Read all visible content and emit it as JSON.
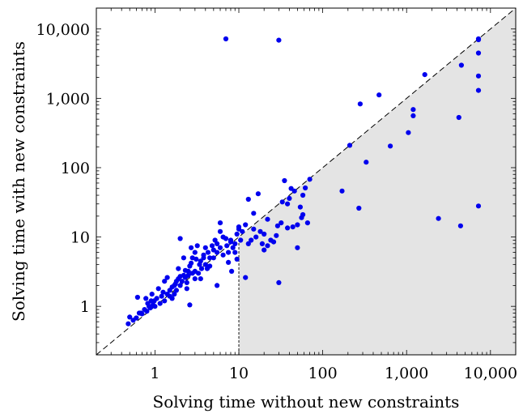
{
  "chart_data": {
    "type": "scatter",
    "xlabel": "Solving time without new constraints",
    "ylabel": "Solving time with new constraints",
    "xscale": "log",
    "yscale": "log",
    "xlim": [
      0.2,
      20000
    ],
    "ylim": [
      0.2,
      20000
    ],
    "xticks": [
      1,
      10,
      100,
      1000,
      10000
    ],
    "xtick_labels": [
      "1",
      "10",
      "100",
      "1,000",
      "10,000"
    ],
    "yticks": [
      1,
      10,
      100,
      1000,
      10000
    ],
    "ytick_labels": [
      "1",
      "10",
      "100",
      "1,000",
      "10,000"
    ],
    "diagonal": "y = x (dashed)",
    "shaded_region": "x >= 10 and y <= x",
    "grid": false,
    "marker_color": "#0000ee",
    "shade_color": "#e4e4e4",
    "points": [
      [
        7,
        7200
      ],
      [
        30,
        6900
      ],
      [
        7200,
        7200
      ],
      [
        7200,
        7000
      ],
      [
        7200,
        4500
      ],
      [
        7200,
        2100
      ],
      [
        7200,
        1300
      ],
      [
        7200,
        28
      ],
      [
        4500,
        3000
      ],
      [
        4200,
        530
      ],
      [
        4400,
        14.5
      ],
      [
        2400,
        18.5
      ],
      [
        1650,
        2200
      ],
      [
        1200,
        690
      ],
      [
        1200,
        560
      ],
      [
        1050,
        320
      ],
      [
        470,
        1120
      ],
      [
        280,
        830
      ],
      [
        210,
        210
      ],
      [
        330,
        120
      ],
      [
        640,
        205
      ],
      [
        170,
        46
      ],
      [
        270,
        26
      ],
      [
        30,
        2.2
      ],
      [
        12,
        2.6
      ],
      [
        50,
        7
      ],
      [
        70,
        68
      ],
      [
        62,
        51
      ],
      [
        58,
        40
      ],
      [
        40,
        36
      ],
      [
        42,
        50
      ],
      [
        46,
        46
      ],
      [
        35,
        65
      ],
      [
        33,
        32
      ],
      [
        38,
        30
      ],
      [
        54,
        27
      ],
      [
        56,
        19
      ],
      [
        58,
        21
      ],
      [
        66,
        16
      ],
      [
        50,
        15
      ],
      [
        44,
        14
      ],
      [
        38,
        13.5
      ],
      [
        32,
        16
      ],
      [
        29,
        14.5
      ],
      [
        22,
        18
      ],
      [
        20,
        11
      ],
      [
        18,
        12
      ],
      [
        16,
        10
      ],
      [
        15,
        13
      ],
      [
        14,
        9
      ],
      [
        13,
        8
      ],
      [
        17,
        42
      ],
      [
        15,
        22
      ],
      [
        13,
        35
      ],
      [
        12,
        15
      ],
      [
        28,
        10.5
      ],
      [
        24,
        9
      ],
      [
        26,
        8.5
      ],
      [
        22,
        7.5
      ],
      [
        20,
        6.5
      ],
      [
        19,
        8
      ],
      [
        11,
        12
      ],
      [
        10.5,
        9
      ],
      [
        10,
        14
      ],
      [
        10,
        13
      ],
      [
        9.5,
        11
      ],
      [
        9,
        8
      ],
      [
        8.5,
        7
      ],
      [
        8,
        9
      ],
      [
        7.5,
        6
      ],
      [
        7,
        9.5
      ],
      [
        6.5,
        10
      ],
      [
        6,
        12
      ],
      [
        6,
        16
      ],
      [
        5.5,
        8
      ],
      [
        5.5,
        6
      ],
      [
        5,
        6.5
      ],
      [
        5,
        5
      ],
      [
        4.8,
        7.5
      ],
      [
        4.5,
        5
      ],
      [
        4.3,
        6
      ],
      [
        4,
        4
      ],
      [
        3.8,
        5.5
      ],
      [
        3.6,
        3.5
      ],
      [
        3.5,
        4.5
      ],
      [
        3.3,
        3
      ],
      [
        3.2,
        7.5
      ],
      [
        3,
        3.2
      ],
      [
        3,
        2.5
      ],
      [
        2.8,
        5
      ],
      [
        2.7,
        7
      ],
      [
        2.6,
        3.8
      ],
      [
        2.5,
        2.8
      ],
      [
        2.4,
        2.2
      ],
      [
        2.4,
        1.8
      ],
      [
        2.3,
        3.3
      ],
      [
        2.2,
        5
      ],
      [
        2.1,
        2.3
      ],
      [
        2,
        2
      ],
      [
        2,
        2.7
      ],
      [
        2,
        9.5
      ],
      [
        1.9,
        3.5
      ],
      [
        1.8,
        1.7
      ],
      [
        1.8,
        2.3
      ],
      [
        1.7,
        1.5
      ],
      [
        1.7,
        2
      ],
      [
        1.6,
        1.9
      ],
      [
        1.6,
        1.3
      ],
      [
        1.5,
        1.7
      ],
      [
        1.5,
        1.4
      ],
      [
        1.4,
        2.6
      ],
      [
        1.4,
        1.5
      ],
      [
        1.3,
        1.2
      ],
      [
        1.3,
        2.3
      ],
      [
        1.25,
        1.6
      ],
      [
        1.2,
        1.4
      ],
      [
        1.15,
        1.1
      ],
      [
        1.1,
        1.8
      ],
      [
        1.05,
        1.3
      ],
      [
        1.0,
        1.0
      ],
      [
        0.98,
        1.2
      ],
      [
        0.95,
        1.05
      ],
      [
        0.92,
        1.5
      ],
      [
        0.9,
        1.2
      ],
      [
        0.88,
        0.95
      ],
      [
        0.85,
        1.0
      ],
      [
        0.82,
        1.1
      ],
      [
        0.8,
        0.85
      ],
      [
        0.78,
        1.3
      ],
      [
        0.75,
        0.9
      ],
      [
        0.7,
        0.78
      ],
      [
        0.68,
        0.8
      ],
      [
        0.65,
        0.8
      ],
      [
        0.62,
        1.35
      ],
      [
        0.6,
        0.68
      ],
      [
        0.55,
        0.63
      ],
      [
        0.5,
        0.7
      ],
      [
        0.48,
        0.56
      ],
      [
        2.6,
        1.05
      ],
      [
        5.5,
        2
      ],
      [
        8.2,
        3.2
      ],
      [
        9.5,
        4.8
      ],
      [
        3.8,
        5
      ],
      [
        4.2,
        3.5
      ],
      [
        6.5,
        5.5
      ],
      [
        7.5,
        4.3
      ],
      [
        2.2,
        2.8
      ],
      [
        2.8,
        3
      ],
      [
        3.5,
        2.5
      ],
      [
        4.5,
        3.8
      ],
      [
        1.9,
        2.5
      ],
      [
        6,
        7
      ],
      [
        8,
        8.5
      ],
      [
        9,
        6
      ],
      [
        7.2,
        7.5
      ],
      [
        5.2,
        9
      ],
      [
        4,
        7
      ],
      [
        3,
        6
      ],
      [
        2.7,
        4.2
      ],
      [
        3.4,
        4
      ],
      [
        2.3,
        2.6
      ],
      [
        2.5,
        3.2
      ],
      [
        3.1,
        4.8
      ],
      [
        1.75,
        2.1
      ]
    ]
  }
}
